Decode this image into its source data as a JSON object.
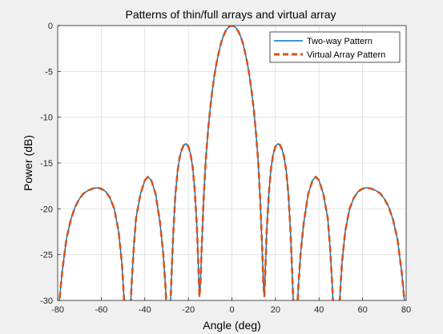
{
  "chart_data": {
    "type": "line",
    "title": "Patterns of thin/full arrays and virtual array",
    "xlabel": "Angle (deg)",
    "ylabel": "Power (dB)",
    "xlim": [
      -80,
      80
    ],
    "ylim": [
      -30,
      0
    ],
    "xticks": [
      -80,
      -60,
      -40,
      -20,
      0,
      20,
      40,
      60,
      80
    ],
    "yticks": [
      0,
      -5,
      -10,
      -15,
      -20,
      -25,
      -30
    ],
    "grid": true,
    "legend_position": "top-right",
    "series": [
      {
        "name": "Two-way Pattern",
        "color": "#0072bd",
        "style": "solid",
        "points": [
          [
            -80,
            -32
          ],
          [
            -78,
            -27
          ],
          [
            -76,
            -23.3
          ],
          [
            -74,
            -21.2
          ],
          [
            -72,
            -19.8
          ],
          [
            -70,
            -18.9
          ],
          [
            -68,
            -18.3
          ],
          [
            -66,
            -18.0
          ],
          [
            -64,
            -17.8
          ],
          [
            -62,
            -17.7
          ],
          [
            -60,
            -17.8
          ],
          [
            -58,
            -18.1
          ],
          [
            -56,
            -18.8
          ],
          [
            -54,
            -20.0
          ],
          [
            -52,
            -22.5
          ],
          [
            -50.5,
            -26
          ],
          [
            -49.5,
            -30
          ],
          [
            -48.5,
            -32
          ],
          [
            -46.8,
            -32
          ],
          [
            -46,
            -28
          ],
          [
            -45,
            -24
          ],
          [
            -44,
            -21
          ],
          [
            -42,
            -18.4
          ],
          [
            -40,
            -16.9
          ],
          [
            -38.5,
            -16.5
          ],
          [
            -37,
            -16.9
          ],
          [
            -35,
            -18.4
          ],
          [
            -33,
            -21.5
          ],
          [
            -31.5,
            -25
          ],
          [
            -30.5,
            -28.5
          ],
          [
            -29.8,
            -32
          ],
          [
            -28.5,
            -32
          ],
          [
            -28,
            -29
          ],
          [
            -27,
            -23
          ],
          [
            -26,
            -18.6
          ],
          [
            -25,
            -16.0
          ],
          [
            -24,
            -14.4
          ],
          [
            -23,
            -13.5
          ],
          [
            -22,
            -13.0
          ],
          [
            -21,
            -12.9
          ],
          [
            -20,
            -13.2
          ],
          [
            -19,
            -14.0
          ],
          [
            -18,
            -15.5
          ],
          [
            -17,
            -18.2
          ],
          [
            -16,
            -22.3
          ],
          [
            -15.3,
            -27
          ],
          [
            -14.9,
            -29.6
          ],
          [
            -14.4,
            -28
          ],
          [
            -14,
            -25
          ],
          [
            -13,
            -19
          ],
          [
            -12,
            -14.6
          ],
          [
            -11,
            -11.6
          ],
          [
            -10,
            -9.1
          ],
          [
            -9,
            -7.1
          ],
          [
            -8,
            -5.4
          ],
          [
            -7,
            -4.0
          ],
          [
            -6,
            -2.9
          ],
          [
            -5,
            -1.9
          ],
          [
            -4,
            -1.2
          ],
          [
            -3,
            -0.65
          ],
          [
            -2,
            -0.3
          ],
          [
            -1,
            -0.07
          ],
          [
            0,
            0
          ],
          [
            1,
            -0.07
          ],
          [
            2,
            -0.3
          ],
          [
            3,
            -0.65
          ],
          [
            4,
            -1.2
          ],
          [
            5,
            -1.9
          ],
          [
            6,
            -2.9
          ],
          [
            7,
            -4.0
          ],
          [
            8,
            -5.4
          ],
          [
            9,
            -7.1
          ],
          [
            10,
            -9.1
          ],
          [
            11,
            -11.6
          ],
          [
            12,
            -14.6
          ],
          [
            13,
            -19
          ],
          [
            14,
            -25
          ],
          [
            14.4,
            -28
          ],
          [
            14.9,
            -29.6
          ],
          [
            15.3,
            -27
          ],
          [
            16,
            -22.3
          ],
          [
            17,
            -18.2
          ],
          [
            18,
            -15.5
          ],
          [
            19,
            -14.0
          ],
          [
            20,
            -13.2
          ],
          [
            21,
            -12.9
          ],
          [
            22,
            -13.0
          ],
          [
            23,
            -13.5
          ],
          [
            24,
            -14.4
          ],
          [
            25,
            -16.0
          ],
          [
            26,
            -18.6
          ],
          [
            27,
            -23
          ],
          [
            28,
            -29
          ],
          [
            28.5,
            -32
          ],
          [
            29.8,
            -32
          ],
          [
            30.5,
            -28.5
          ],
          [
            31.5,
            -25
          ],
          [
            33,
            -21.5
          ],
          [
            35,
            -18.4
          ],
          [
            37,
            -16.9
          ],
          [
            38.5,
            -16.5
          ],
          [
            40,
            -16.9
          ],
          [
            42,
            -18.4
          ],
          [
            44,
            -21
          ],
          [
            45,
            -24
          ],
          [
            46,
            -28
          ],
          [
            46.8,
            -32
          ],
          [
            48.5,
            -32
          ],
          [
            49.5,
            -30
          ],
          [
            50.5,
            -26
          ],
          [
            52,
            -22.5
          ],
          [
            54,
            -20.0
          ],
          [
            56,
            -18.8
          ],
          [
            58,
            -18.1
          ],
          [
            60,
            -17.8
          ],
          [
            62,
            -17.7
          ],
          [
            64,
            -17.8
          ],
          [
            66,
            -18.0
          ],
          [
            68,
            -18.3
          ],
          [
            70,
            -18.9
          ],
          [
            72,
            -19.8
          ],
          [
            74,
            -21.2
          ],
          [
            76,
            -23.3
          ],
          [
            78,
            -27
          ],
          [
            80,
            -32
          ]
        ]
      },
      {
        "name": "Virtual Array Pattern",
        "color": "#d95319",
        "style": "dashed",
        "points": [
          [
            -80,
            -32
          ],
          [
            -78,
            -27
          ],
          [
            -76,
            -23.3
          ],
          [
            -74,
            -21.2
          ],
          [
            -72,
            -19.8
          ],
          [
            -70,
            -18.9
          ],
          [
            -68,
            -18.3
          ],
          [
            -66,
            -18.0
          ],
          [
            -64,
            -17.8
          ],
          [
            -62,
            -17.7
          ],
          [
            -60,
            -17.8
          ],
          [
            -58,
            -18.1
          ],
          [
            -56,
            -18.8
          ],
          [
            -54,
            -20.0
          ],
          [
            -52,
            -22.5
          ],
          [
            -50.5,
            -26
          ],
          [
            -49.5,
            -30
          ],
          [
            -48.5,
            -32
          ],
          [
            -46.8,
            -32
          ],
          [
            -46,
            -28
          ],
          [
            -45,
            -24
          ],
          [
            -44,
            -21
          ],
          [
            -42,
            -18.4
          ],
          [
            -40,
            -16.9
          ],
          [
            -38.5,
            -16.5
          ],
          [
            -37,
            -16.9
          ],
          [
            -35,
            -18.4
          ],
          [
            -33,
            -21.5
          ],
          [
            -31.5,
            -25
          ],
          [
            -30.5,
            -28.5
          ],
          [
            -29.8,
            -32
          ],
          [
            -28.5,
            -32
          ],
          [
            -28,
            -29
          ],
          [
            -27,
            -23
          ],
          [
            -26,
            -18.6
          ],
          [
            -25,
            -16.0
          ],
          [
            -24,
            -14.4
          ],
          [
            -23,
            -13.5
          ],
          [
            -22,
            -13.0
          ],
          [
            -21,
            -12.9
          ],
          [
            -20,
            -13.2
          ],
          [
            -19,
            -14.0
          ],
          [
            -18,
            -15.5
          ],
          [
            -17,
            -18.2
          ],
          [
            -16,
            -22.3
          ],
          [
            -15.3,
            -27
          ],
          [
            -14.9,
            -29.6
          ],
          [
            -14.4,
            -28
          ],
          [
            -14,
            -25
          ],
          [
            -13,
            -19
          ],
          [
            -12,
            -14.6
          ],
          [
            -11,
            -11.6
          ],
          [
            -10,
            -9.1
          ],
          [
            -9,
            -7.1
          ],
          [
            -8,
            -5.4
          ],
          [
            -7,
            -4.0
          ],
          [
            -6,
            -2.9
          ],
          [
            -5,
            -1.9
          ],
          [
            -4,
            -1.2
          ],
          [
            -3,
            -0.65
          ],
          [
            -2,
            -0.3
          ],
          [
            -1,
            -0.07
          ],
          [
            0,
            0
          ],
          [
            1,
            -0.07
          ],
          [
            2,
            -0.3
          ],
          [
            3,
            -0.65
          ],
          [
            4,
            -1.2
          ],
          [
            5,
            -1.9
          ],
          [
            6,
            -2.9
          ],
          [
            7,
            -4.0
          ],
          [
            8,
            -5.4
          ],
          [
            9,
            -7.1
          ],
          [
            10,
            -9.1
          ],
          [
            11,
            -11.6
          ],
          [
            12,
            -14.6
          ],
          [
            13,
            -19
          ],
          [
            14,
            -25
          ],
          [
            14.4,
            -28
          ],
          [
            14.9,
            -29.6
          ],
          [
            15.3,
            -27
          ],
          [
            16,
            -22.3
          ],
          [
            17,
            -18.2
          ],
          [
            18,
            -15.5
          ],
          [
            19,
            -14.0
          ],
          [
            20,
            -13.2
          ],
          [
            21,
            -12.9
          ],
          [
            22,
            -13.0
          ],
          [
            23,
            -13.5
          ],
          [
            24,
            -14.4
          ],
          [
            25,
            -16.0
          ],
          [
            26,
            -18.6
          ],
          [
            27,
            -23
          ],
          [
            28,
            -29
          ],
          [
            28.5,
            -32
          ],
          [
            29.8,
            -32
          ],
          [
            30.5,
            -28.5
          ],
          [
            31.5,
            -25
          ],
          [
            33,
            -21.5
          ],
          [
            35,
            -18.4
          ],
          [
            37,
            -16.9
          ],
          [
            38.5,
            -16.5
          ],
          [
            40,
            -16.9
          ],
          [
            42,
            -18.4
          ],
          [
            44,
            -21
          ],
          [
            45,
            -24
          ],
          [
            46,
            -28
          ],
          [
            46.8,
            -32
          ],
          [
            48.5,
            -32
          ],
          [
            49.5,
            -30
          ],
          [
            50.5,
            -26
          ],
          [
            52,
            -22.5
          ],
          [
            54,
            -20.0
          ],
          [
            56,
            -18.8
          ],
          [
            58,
            -18.1
          ],
          [
            60,
            -17.8
          ],
          [
            62,
            -17.7
          ],
          [
            64,
            -17.8
          ],
          [
            66,
            -18.0
          ],
          [
            68,
            -18.3
          ],
          [
            70,
            -18.9
          ],
          [
            72,
            -19.8
          ],
          [
            74,
            -21.2
          ],
          [
            76,
            -23.3
          ],
          [
            78,
            -27
          ],
          [
            80,
            -32
          ]
        ]
      }
    ]
  }
}
